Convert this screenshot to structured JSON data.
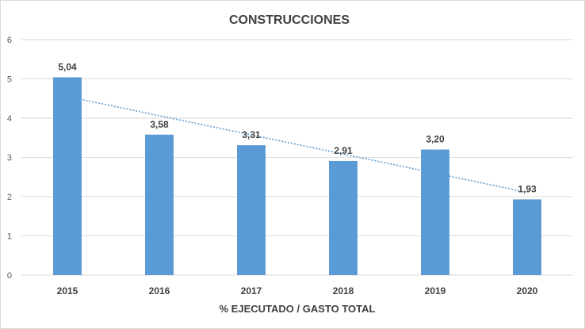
{
  "chart_data": {
    "type": "bar",
    "title": "CONSTRUCCIONES",
    "xlabel": "% EJECUTADO / GASTO TOTAL",
    "ylabel": "",
    "categories": [
      "2015",
      "2016",
      "2017",
      "2018",
      "2019",
      "2020"
    ],
    "values": [
      5.04,
      3.58,
      3.31,
      2.91,
      3.2,
      1.93
    ],
    "data_labels": [
      "5,04",
      "3,58",
      "3,31",
      "2,91",
      "3,20",
      "1,93"
    ],
    "ylim": [
      0,
      6
    ],
    "yticks": [
      "0",
      "1",
      "2",
      "3",
      "4",
      "5",
      "6"
    ],
    "grid": true,
    "trendline": "linear",
    "colors": {
      "bar": "#5b9bd5",
      "trendline": "#5b9bd5",
      "grid": "#d9d9d9"
    }
  }
}
